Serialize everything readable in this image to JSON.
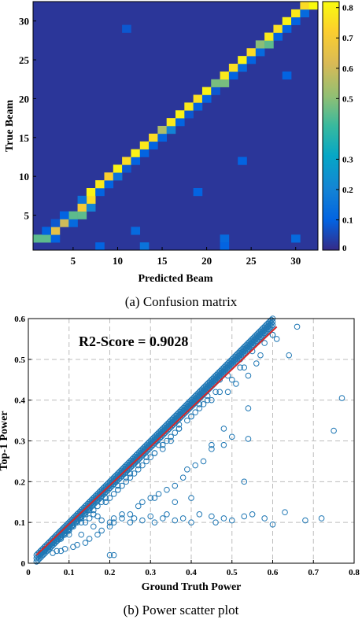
{
  "captions": {
    "a": "(a) Confusion matrix",
    "b": "(b) Power scatter plot"
  },
  "chart_data": [
    {
      "type": "heatmap",
      "caption": "(a) Confusion matrix",
      "xlabel": "Predicted Beam",
      "ylabel": "True Beam",
      "x_ticks": [
        5,
        10,
        15,
        20,
        25,
        30
      ],
      "y_ticks": [
        5,
        10,
        15,
        20,
        25,
        30
      ],
      "n_beams": 32,
      "background_value": 0.02,
      "colorbar": {
        "ticks": [
          0,
          0.1,
          0.2,
          0.3,
          0.5,
          0.6,
          0.7,
          0.8
        ],
        "tick_labels": [
          "0",
          "0.1",
          "0.2",
          "0.3",
          "0.5",
          "0.6",
          "0.7",
          "0.8"
        ],
        "range": [
          0,
          0.82
        ],
        "colormap": "parula"
      },
      "cells": [
        {
          "true": 1,
          "pred": 1,
          "value": 0.02
        },
        {
          "true": 2,
          "pred": 1,
          "value": 0.45
        },
        {
          "true": 2,
          "pred": 2,
          "value": 0.45
        },
        {
          "true": 2,
          "pred": 3,
          "value": 0.1
        },
        {
          "true": 3,
          "pred": 3,
          "value": 0.65
        },
        {
          "true": 3,
          "pred": 2,
          "value": 0.1
        },
        {
          "true": 4,
          "pred": 4,
          "value": 0.6
        },
        {
          "true": 4,
          "pred": 5,
          "value": 0.12
        },
        {
          "true": 4,
          "pred": 3,
          "value": 0.08
        },
        {
          "true": 5,
          "pred": 5,
          "value": 0.45
        },
        {
          "true": 5,
          "pred": 4,
          "value": 0.1
        },
        {
          "true": 5,
          "pred": 6,
          "value": 0.45
        },
        {
          "true": 6,
          "pred": 6,
          "value": 0.7
        },
        {
          "true": 6,
          "pred": 7,
          "value": 0.2
        },
        {
          "true": 7,
          "pred": 7,
          "value": 0.75
        },
        {
          "true": 7,
          "pred": 6,
          "value": 0.15
        },
        {
          "true": 8,
          "pred": 7,
          "value": 0.8
        },
        {
          "true": 8,
          "pred": 8,
          "value": 0.1
        },
        {
          "true": 9,
          "pred": 8,
          "value": 0.78
        },
        {
          "true": 9,
          "pred": 9,
          "value": 0.1
        },
        {
          "true": 10,
          "pred": 9,
          "value": 0.72
        },
        {
          "true": 10,
          "pred": 10,
          "value": 0.15
        },
        {
          "true": 11,
          "pred": 10,
          "value": 0.8
        },
        {
          "true": 11,
          "pred": 11,
          "value": 0.08
        },
        {
          "true": 12,
          "pred": 11,
          "value": 0.75
        },
        {
          "true": 12,
          "pred": 12,
          "value": 0.1
        },
        {
          "true": 13,
          "pred": 12,
          "value": 0.8
        },
        {
          "true": 13,
          "pred": 13,
          "value": 0.1
        },
        {
          "true": 14,
          "pred": 13,
          "value": 0.78
        },
        {
          "true": 14,
          "pred": 14,
          "value": 0.1
        },
        {
          "true": 15,
          "pred": 14,
          "value": 0.75
        },
        {
          "true": 15,
          "pred": 15,
          "value": 0.1
        },
        {
          "true": 16,
          "pred": 15,
          "value": 0.55
        },
        {
          "true": 16,
          "pred": 16,
          "value": 0.2
        },
        {
          "true": 17,
          "pred": 16,
          "value": 0.78
        },
        {
          "true": 17,
          "pred": 17,
          "value": 0.1
        },
        {
          "true": 18,
          "pred": 17,
          "value": 0.8
        },
        {
          "true": 18,
          "pred": 18,
          "value": 0.08
        },
        {
          "true": 19,
          "pred": 18,
          "value": 0.78
        },
        {
          "true": 19,
          "pred": 19,
          "value": 0.1
        },
        {
          "true": 20,
          "pred": 19,
          "value": 0.76
        },
        {
          "true": 20,
          "pred": 20,
          "value": 0.1
        },
        {
          "true": 21,
          "pred": 20,
          "value": 0.8
        },
        {
          "true": 21,
          "pred": 21,
          "value": 0.08
        },
        {
          "true": 22,
          "pred": 21,
          "value": 0.48
        },
        {
          "true": 22,
          "pred": 22,
          "value": 0.48
        },
        {
          "true": 23,
          "pred": 22,
          "value": 0.78
        },
        {
          "true": 23,
          "pred": 23,
          "value": 0.1
        },
        {
          "true": 24,
          "pred": 23,
          "value": 0.76
        },
        {
          "true": 24,
          "pred": 24,
          "value": 0.12
        },
        {
          "true": 25,
          "pred": 24,
          "value": 0.8
        },
        {
          "true": 25,
          "pred": 25,
          "value": 0.1
        },
        {
          "true": 26,
          "pred": 25,
          "value": 0.75
        },
        {
          "true": 26,
          "pred": 26,
          "value": 0.12
        },
        {
          "true": 27,
          "pred": 26,
          "value": 0.5
        },
        {
          "true": 27,
          "pred": 27,
          "value": 0.45
        },
        {
          "true": 28,
          "pred": 27,
          "value": 0.78
        },
        {
          "true": 28,
          "pred": 28,
          "value": 0.1
        },
        {
          "true": 29,
          "pred": 28,
          "value": 0.76
        },
        {
          "true": 29,
          "pred": 29,
          "value": 0.1
        },
        {
          "true": 30,
          "pred": 29,
          "value": 0.8
        },
        {
          "true": 30,
          "pred": 30,
          "value": 0.1
        },
        {
          "true": 31,
          "pred": 30,
          "value": 0.78
        },
        {
          "true": 31,
          "pred": 31,
          "value": 0.12
        },
        {
          "true": 32,
          "pred": 31,
          "value": 0.75
        },
        {
          "true": 32,
          "pred": 32,
          "value": 0.82
        },
        {
          "true": 1,
          "pred": 8,
          "value": 0.1
        },
        {
          "true": 3,
          "pred": 12,
          "value": 0.12
        },
        {
          "true": 1,
          "pred": 13,
          "value": 0.15
        },
        {
          "true": 2,
          "pred": 22,
          "value": 0.12
        },
        {
          "true": 1,
          "pred": 22,
          "value": 0.1
        },
        {
          "true": 2,
          "pred": 30,
          "value": 0.12
        },
        {
          "true": 8,
          "pred": 19,
          "value": 0.1
        },
        {
          "true": 12,
          "pred": 24,
          "value": 0.1
        },
        {
          "true": 29,
          "pred": 11,
          "value": 0.08
        },
        {
          "true": 23,
          "pred": 29,
          "value": 0.1
        }
      ]
    },
    {
      "type": "scatter",
      "caption": "(b) Power scatter plot",
      "xlabel": "Ground Truth Power",
      "ylabel": "Top-1 Power",
      "xlim": [
        0,
        0.8
      ],
      "ylim": [
        0,
        0.6
      ],
      "x_ticks": [
        0,
        0.1,
        0.2,
        0.3,
        0.4,
        0.5,
        0.6,
        0.7,
        0.8
      ],
      "y_ticks": [
        0,
        0.1,
        0.2,
        0.3,
        0.4,
        0.5,
        0.6
      ],
      "grid": true,
      "annotation": "R2-Score = 0.9028",
      "marker_color": "#1f77b4",
      "fit_line_color": "#d62728",
      "fit_line": {
        "x": [
          0.02,
          0.61
        ],
        "y": [
          0.02,
          0.58
        ]
      },
      "identity_band": {
        "x_start": 0.02,
        "x_end": 0.6,
        "description": "dense points along y = x"
      },
      "points": {
        "x": [
          0.77,
          0.75,
          0.68,
          0.72,
          0.63,
          0.6,
          0.58,
          0.55,
          0.53,
          0.5,
          0.48,
          0.46,
          0.45,
          0.42,
          0.4,
          0.38,
          0.36,
          0.34,
          0.33,
          0.31,
          0.3,
          0.28,
          0.26,
          0.25,
          0.23,
          0.21,
          0.2,
          0.18,
          0.17,
          0.15,
          0.14,
          0.12,
          0.11,
          0.09,
          0.08,
          0.06,
          0.05,
          0.04,
          0.03,
          0.6,
          0.58,
          0.56,
          0.54,
          0.52,
          0.51,
          0.49,
          0.47,
          0.45,
          0.44,
          0.42,
          0.41,
          0.39,
          0.37,
          0.36,
          0.35,
          0.33,
          0.32,
          0.3,
          0.29,
          0.27,
          0.26,
          0.24,
          0.23,
          0.22,
          0.2,
          0.19,
          0.17,
          0.16,
          0.15,
          0.13,
          0.12,
          0.1,
          0.09,
          0.08,
          0.07,
          0.06,
          0.05,
          0.04,
          0.55,
          0.52,
          0.49,
          0.47,
          0.44,
          0.42,
          0.4,
          0.37,
          0.35,
          0.33,
          0.31,
          0.29,
          0.27,
          0.25,
          0.24,
          0.22,
          0.21,
          0.19,
          0.18,
          0.16,
          0.14,
          0.13,
          0.11,
          0.1,
          0.54,
          0.5,
          0.48,
          0.45,
          0.43,
          0.41,
          0.39,
          0.38,
          0.36,
          0.34,
          0.32,
          0.3,
          0.28,
          0.27,
          0.25,
          0.23,
          0.21,
          0.2,
          0.18,
          0.17,
          0.15,
          0.14,
          0.12,
          0.11,
          0.09,
          0.08,
          0.07,
          0.06,
          0.66,
          0.61,
          0.57,
          0.53,
          0.5,
          0.46,
          0.43,
          0.4,
          0.37,
          0.34,
          0.31,
          0.28,
          0.25,
          0.22,
          0.19,
          0.16,
          0.13,
          0.1,
          0.4,
          0.53,
          0.64,
          0.54,
          0.48,
          0.45,
          0.6,
          0.2,
          0.21,
          0.1,
          0.13,
          0.16,
          0.36,
          0.31
        ],
        "y": [
          0.405,
          0.325,
          0.105,
          0.11,
          0.125,
          0.095,
          0.11,
          0.12,
          0.115,
          0.105,
          0.11,
          0.1,
          0.115,
          0.12,
          0.1,
          0.11,
          0.105,
          0.12,
          0.11,
          0.1,
          0.115,
          0.105,
          0.11,
          0.1,
          0.12,
          0.11,
          0.1,
          0.105,
          0.115,
          0.11,
          0.1,
          0.12,
          0.09,
          0.08,
          0.06,
          0.05,
          0.04,
          0.03,
          0.025,
          0.56,
          0.54,
          0.49,
          0.46,
          0.5,
          0.44,
          0.42,
          0.45,
          0.4,
          0.41,
          0.38,
          0.37,
          0.35,
          0.34,
          0.32,
          0.3,
          0.28,
          0.29,
          0.26,
          0.25,
          0.23,
          0.22,
          0.2,
          0.19,
          0.18,
          0.16,
          0.15,
          0.14,
          0.12,
          0.13,
          0.11,
          0.1,
          0.08,
          0.07,
          0.065,
          0.055,
          0.05,
          0.04,
          0.035,
          0.52,
          0.48,
          0.46,
          0.42,
          0.4,
          0.39,
          0.36,
          0.33,
          0.31,
          0.29,
          0.27,
          0.26,
          0.24,
          0.22,
          0.21,
          0.19,
          0.17,
          0.16,
          0.15,
          0.13,
          0.12,
          0.11,
          0.09,
          0.08,
          0.305,
          0.31,
          0.29,
          0.28,
          0.25,
          0.24,
          0.23,
          0.21,
          0.19,
          0.18,
          0.17,
          0.16,
          0.15,
          0.14,
          0.12,
          0.11,
          0.1,
          0.09,
          0.08,
          0.07,
          0.06,
          0.05,
          0.045,
          0.04,
          0.035,
          0.03,
          0.03,
          0.025,
          0.58,
          0.55,
          0.51,
          0.48,
          0.45,
          0.42,
          0.39,
          0.36,
          0.33,
          0.3,
          0.27,
          0.24,
          0.21,
          0.18,
          0.15,
          0.12,
          0.1,
          0.07,
          0.16,
          0.2,
          0.51,
          0.38,
          0.33,
          0.29,
          0.56,
          0.02,
          0.02,
          0.09,
          0.07,
          0.09,
          0.15,
          0.16
        ]
      }
    }
  ]
}
